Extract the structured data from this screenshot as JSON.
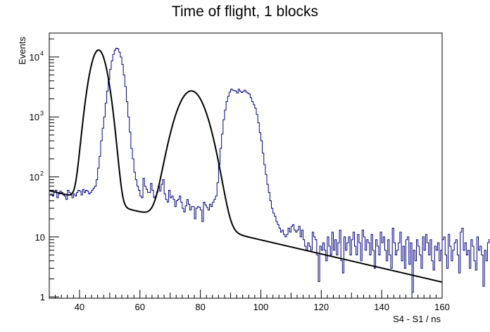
{
  "chart_data": {
    "type": "line",
    "title": "Time of flight, 1 blocks",
    "xlabel": "S4 - S1 / ns",
    "ylabel": "Events",
    "xlim": [
      30,
      160
    ],
    "ylim": [
      0.95,
      25000
    ],
    "yscale": "log",
    "grid": false,
    "legend": "none",
    "x_ticks": [
      40,
      60,
      80,
      100,
      120,
      140,
      160
    ],
    "y_ticks": [
      {
        "value": 1,
        "base": "1",
        "exp": ""
      },
      {
        "value": 10,
        "base": "10",
        "exp": ""
      },
      {
        "value": 100,
        "base": "10",
        "exp": "2"
      },
      {
        "value": 1000,
        "base": "10",
        "exp": "3"
      },
      {
        "value": 10000,
        "base": "10",
        "exp": "4"
      }
    ],
    "colors": {
      "histogram": "#000080",
      "fit": "#000000"
    },
    "series": [
      {
        "kind": "histogram",
        "bin_width": 0.5,
        "x_start": 30,
        "values": [
          50,
          52,
          48,
          55,
          60,
          45,
          52,
          58,
          55,
          50,
          48,
          42,
          60,
          55,
          50,
          45,
          52,
          48,
          55,
          60,
          58,
          50,
          62,
          55,
          60,
          58,
          52,
          55,
          60,
          65,
          70,
          90,
          140,
          220,
          400,
          650,
          1000,
          1700,
          2700,
          4200,
          6200,
          8600,
          11000,
          13000,
          14000,
          13600,
          12000,
          10000,
          7500,
          5000,
          3200,
          1800,
          1000,
          560,
          300,
          200,
          120,
          90,
          70,
          60,
          48,
          45,
          95,
          70,
          62,
          55,
          55,
          78,
          60,
          45,
          48,
          56,
          70,
          58,
          75,
          90,
          52,
          42,
          38,
          60,
          45,
          48,
          42,
          32,
          40,
          42,
          48,
          38,
          30,
          26,
          33,
          42,
          35,
          28,
          32,
          32,
          20,
          30,
          32,
          31,
          28,
          18,
          38,
          34,
          31,
          28,
          35,
          32,
          38,
          42,
          48,
          80,
          160,
          300,
          520,
          900,
          1300,
          1800,
          2200,
          2600,
          2900,
          2800,
          2750,
          2700,
          2500,
          2900,
          2700,
          2550,
          2650,
          2800,
          2600,
          2500,
          2400,
          2100,
          1800,
          1600,
          1400,
          1100,
          800,
          550,
          400,
          250,
          160,
          110,
          75,
          55,
          40,
          30,
          25,
          22,
          18,
          16,
          14,
          12,
          13,
          11,
          10,
          11,
          14,
          12,
          15,
          16,
          13,
          12,
          13,
          15,
          10,
          13,
          9,
          7,
          6,
          8,
          7,
          6,
          12,
          10,
          9,
          5,
          1.8,
          7,
          6,
          8,
          6,
          4,
          10,
          7,
          5,
          12,
          6,
          9,
          5,
          8,
          13,
          4,
          2.5,
          10,
          6,
          8,
          10,
          5,
          9,
          12,
          7,
          5,
          11,
          8,
          4,
          13,
          10,
          6,
          9,
          8,
          5,
          11,
          6,
          3,
          9,
          7,
          5,
          12,
          8,
          10,
          6,
          4,
          9,
          5,
          3,
          14,
          8,
          5,
          6,
          8,
          12,
          4,
          7,
          3,
          9,
          10,
          3.5,
          8,
          1.2,
          6,
          4,
          9,
          7,
          5,
          3,
          10,
          6,
          11,
          8,
          5,
          9,
          4,
          2.8,
          7,
          6,
          8,
          4,
          6,
          9,
          10,
          5,
          3,
          11,
          7,
          4,
          6,
          8,
          9,
          5,
          2.5,
          12,
          14,
          6,
          8,
          5,
          6,
          3,
          9,
          7,
          4,
          2.8,
          10,
          6,
          7,
          5,
          1.5,
          6,
          4,
          8,
          9,
          3,
          6,
          12,
          5,
          6,
          4,
          8,
          7,
          6,
          9,
          3,
          11,
          7,
          5,
          6,
          4,
          4.5,
          8,
          5,
          3,
          7,
          6,
          4,
          2.2,
          9,
          6,
          5,
          1.1,
          4,
          7,
          6,
          2.5,
          8,
          5,
          4,
          3.5,
          2.6,
          3.5,
          1.6,
          1.4,
          4,
          2.2,
          3.7,
          1.7,
          3.8
        ]
      },
      {
        "kind": "fit",
        "model": "exp_background_plus_two_gaussians",
        "background": {
          "amplitude": 59,
          "decay": 0.027,
          "x0": 30
        },
        "peaks": [
          {
            "mean": 46.3,
            "sigma": 2.2,
            "amplitude": 13000
          },
          {
            "mean": 77.0,
            "sigma": 3.8,
            "amplitude": 2700
          }
        ]
      }
    ]
  }
}
